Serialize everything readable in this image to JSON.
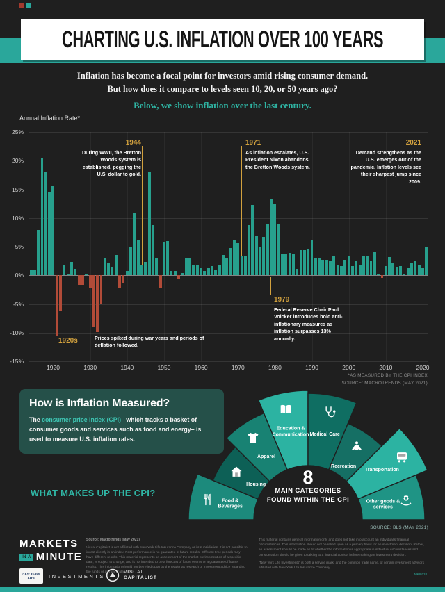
{
  "colors": {
    "accent_teal": "#2aa79b",
    "gold": "#d2a13e",
    "bar_positive": "#27a08d",
    "bar_negative": "#b24b38"
  },
  "header": {
    "title": "CHARTING U.S. INFLATION OVER 100 YEARS"
  },
  "intro": {
    "line1": "Inflation has become a focal point for investors amid rising consumer demand.",
    "line2": "But how does it compare to levels seen 10, 20, or 50 years ago?",
    "line3": "Below, we show inflation over the last century."
  },
  "chart_data": {
    "type": "bar",
    "title": "Annual Inflation Rate",
    "ylabel": "Annual Inflation Rate*",
    "ylim": [
      -15,
      25
    ],
    "yticks": [
      25,
      20,
      15,
      10,
      5,
      0,
      -5,
      -10,
      -15
    ],
    "xticks": [
      1920,
      1930,
      1940,
      1950,
      1960,
      1970,
      1980,
      1990,
      2000,
      2010,
      2020
    ],
    "start_year": 1914,
    "end_year": 2021,
    "grid": true,
    "positive_color": "#27a08d",
    "negative_color": "#b24b38",
    "values": [
      1.0,
      1.0,
      7.9,
      20.4,
      18.0,
      14.6,
      15.6,
      -10.5,
      -6.1,
      1.8,
      0.0,
      2.3,
      1.1,
      -1.7,
      -1.7,
      0.0,
      -2.3,
      -9.0,
      -9.9,
      -5.1,
      3.1,
      2.2,
      1.5,
      3.6,
      -2.1,
      -1.4,
      0.7,
      5.0,
      10.9,
      6.1,
      1.7,
      2.3,
      18.1,
      8.8,
      3.0,
      -2.1,
      5.9,
      6.0,
      0.8,
      0.7,
      -0.7,
      0.4,
      3.0,
      2.9,
      1.8,
      1.7,
      1.4,
      0.7,
      1.3,
      1.6,
      1.0,
      1.9,
      3.5,
      3.0,
      4.7,
      6.2,
      5.6,
      3.3,
      3.4,
      8.7,
      12.3,
      6.9,
      4.9,
      6.7,
      9.0,
      13.3,
      12.5,
      8.9,
      3.8,
      3.8,
      3.9,
      3.8,
      1.1,
      4.4,
      4.4,
      4.6,
      6.1,
      3.1,
      2.9,
      2.7,
      2.7,
      2.5,
      3.3,
      1.7,
      1.6,
      2.7,
      3.4,
      1.6,
      2.4,
      1.9,
      3.3,
      3.4,
      2.5,
      4.1,
      0.1,
      -0.4,
      1.6,
      3.2,
      2.1,
      1.5,
      1.6,
      0.1,
      1.3,
      2.1,
      2.4,
      1.8,
      1.2,
      5.0
    ],
    "annotations": {
      "y1944": {
        "label": "1944",
        "text": "During WWII, the Bretton Woods system is established, pegging the U.S. dollar to gold."
      },
      "y1971": {
        "label": "1971",
        "text": "As inflation escalates, U.S. President Nixon abandons the Bretton Woods system."
      },
      "y2021": {
        "label": "2021",
        "text": "Demand strengthens as the U.S. emerges out of the pandemic. Inflation levels see their sharpest jump since 2009."
      },
      "y1979": {
        "label": "1979",
        "text": "Federal Reserve Chair Paul Volcker introduces bold anti-inflationary measures as inflation surpasses 13% annually."
      },
      "y1920s": {
        "label": "1920s",
        "text": "Prices spiked during war years and periods of deflation followed."
      }
    },
    "footnote1": "*AS MEASURED BY THE CPI INDEX",
    "footnote2": "SOURCE: MACROTRENDS (MAY 2021)"
  },
  "measured": {
    "heading": "How is Inflation Measured?",
    "body_prefix": "The ",
    "body_highlight": "consumer price index (CPI)–",
    "body_suffix": " which tracks a basket of consumer goods and services such as food and energy– is used to measure U.S. inflation rates.",
    "question": "WHAT MAKES UP THE CPI?"
  },
  "cpi_fan": {
    "center_number": "8",
    "center_line1": "MAIN CATEGORIES",
    "center_line2": "FOUND WITHIN THE CPI",
    "source": "SOURCE: BLS (MAY 2021)",
    "categories": [
      {
        "label": "Food & Beverages",
        "icon": "food-icon",
        "color": "#1c8a7c"
      },
      {
        "label": "Housing",
        "icon": "housing-icon",
        "color": "#0d6056"
      },
      {
        "label": "Apparel",
        "icon": "apparel-icon",
        "color": "#188273"
      },
      {
        "label": "Education & Communication",
        "icon": "education-icon",
        "color": "#2cb3a2"
      },
      {
        "label": "Medical Care",
        "icon": "medical-icon",
        "color": "#0f6e62"
      },
      {
        "label": "Recreation",
        "icon": "recreation-icon",
        "color": "#156f64"
      },
      {
        "label": "Transportation",
        "icon": "transportation-icon",
        "color": "#2cb3a2"
      },
      {
        "label": "Other goods & services",
        "icon": "other-goods-icon",
        "color": "#1f9485"
      }
    ]
  },
  "footer": {
    "logo": {
      "line1": "MARKETS",
      "line2a": "IN A",
      "line2b": "MINUTE"
    },
    "col1_source": "Source: Macrotrends (May 2021)",
    "col1_body": "Visual Capitalist is not affiliated with New York Life Insurance Company or its subsidiaries. It is not possible to invest directly in an index. Past performance is no guarantee of future results. Different time periods may have different results. This material represents an assessment of the market environment as of a specific date, is subject to change, and is not intended to be a forecast of future events or a guarantee of future results. This information should not be relied upon by the reader as research or investment advice regarding the funds or any particular issue.",
    "col2_body": "This material contains general information only and does not take into account an individual's financial circumstances. This information should not be relied upon as a primary basis for an investment decision. Rather, an assessment should be made as to whether the information is appropriate in individual circumstances and consideration should be given to talking to a financial advisor before making an investment decision.",
    "col2_trademark": "\"New York Life Investments\" is both a service mark, and the common trade name, of certain investment advisors affiliated with New York Life Insurance Company.",
    "code": "MKI0218",
    "nyl_line1": "NEW YORK",
    "nyl_line2": "LIFE",
    "nyl_investments": "INVESTMENTS",
    "vc_line1": "VISUAL",
    "vc_line2": "CAPITALIST"
  }
}
